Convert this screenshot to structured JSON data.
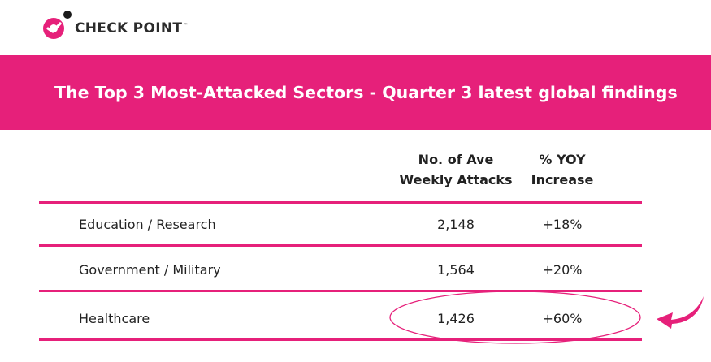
{
  "logo": {
    "text": "CHECK POINT",
    "tm": "™",
    "colors": {
      "brand_pink": "#e6207a",
      "dark": "#2b2b2b"
    },
    "icon": "check-point-logo-icon"
  },
  "banner": {
    "title": "The Top 3 Most-Attacked Sectors - Quarter 3 latest global findings",
    "color": "#e6207a"
  },
  "table": {
    "headers": {
      "attacks_line1": "No. of Ave",
      "attacks_line2": "Weekly Attacks",
      "yoy_line1": "% YOY",
      "yoy_line2": "Increase"
    },
    "rows": [
      {
        "sector": "Education / Research",
        "attacks": "2,148",
        "yoy": "+18%"
      },
      {
        "sector": "Government / Military",
        "attacks": "1,564",
        "yoy": "+20%"
      },
      {
        "sector": "Healthcare",
        "attacks": "1,426",
        "yoy": "+60%"
      }
    ]
  },
  "chart_data": {
    "type": "table",
    "title": "The Top 3 Most-Attacked Sectors - Quarter 3 latest global findings",
    "columns": [
      "",
      "No. of Ave Weekly Attacks",
      "% YOY Increase"
    ],
    "categories": [
      "Education / Research",
      "Government / Military",
      "Healthcare"
    ],
    "series": [
      {
        "name": "No. of Ave Weekly Attacks",
        "values": [
          2148,
          1564,
          1426
        ]
      },
      {
        "name": "% YOY Increase",
        "values": [
          18,
          20,
          60
        ]
      }
    ],
    "highlighted_row": "Healthcare",
    "annotation_color": "#e6207a"
  }
}
